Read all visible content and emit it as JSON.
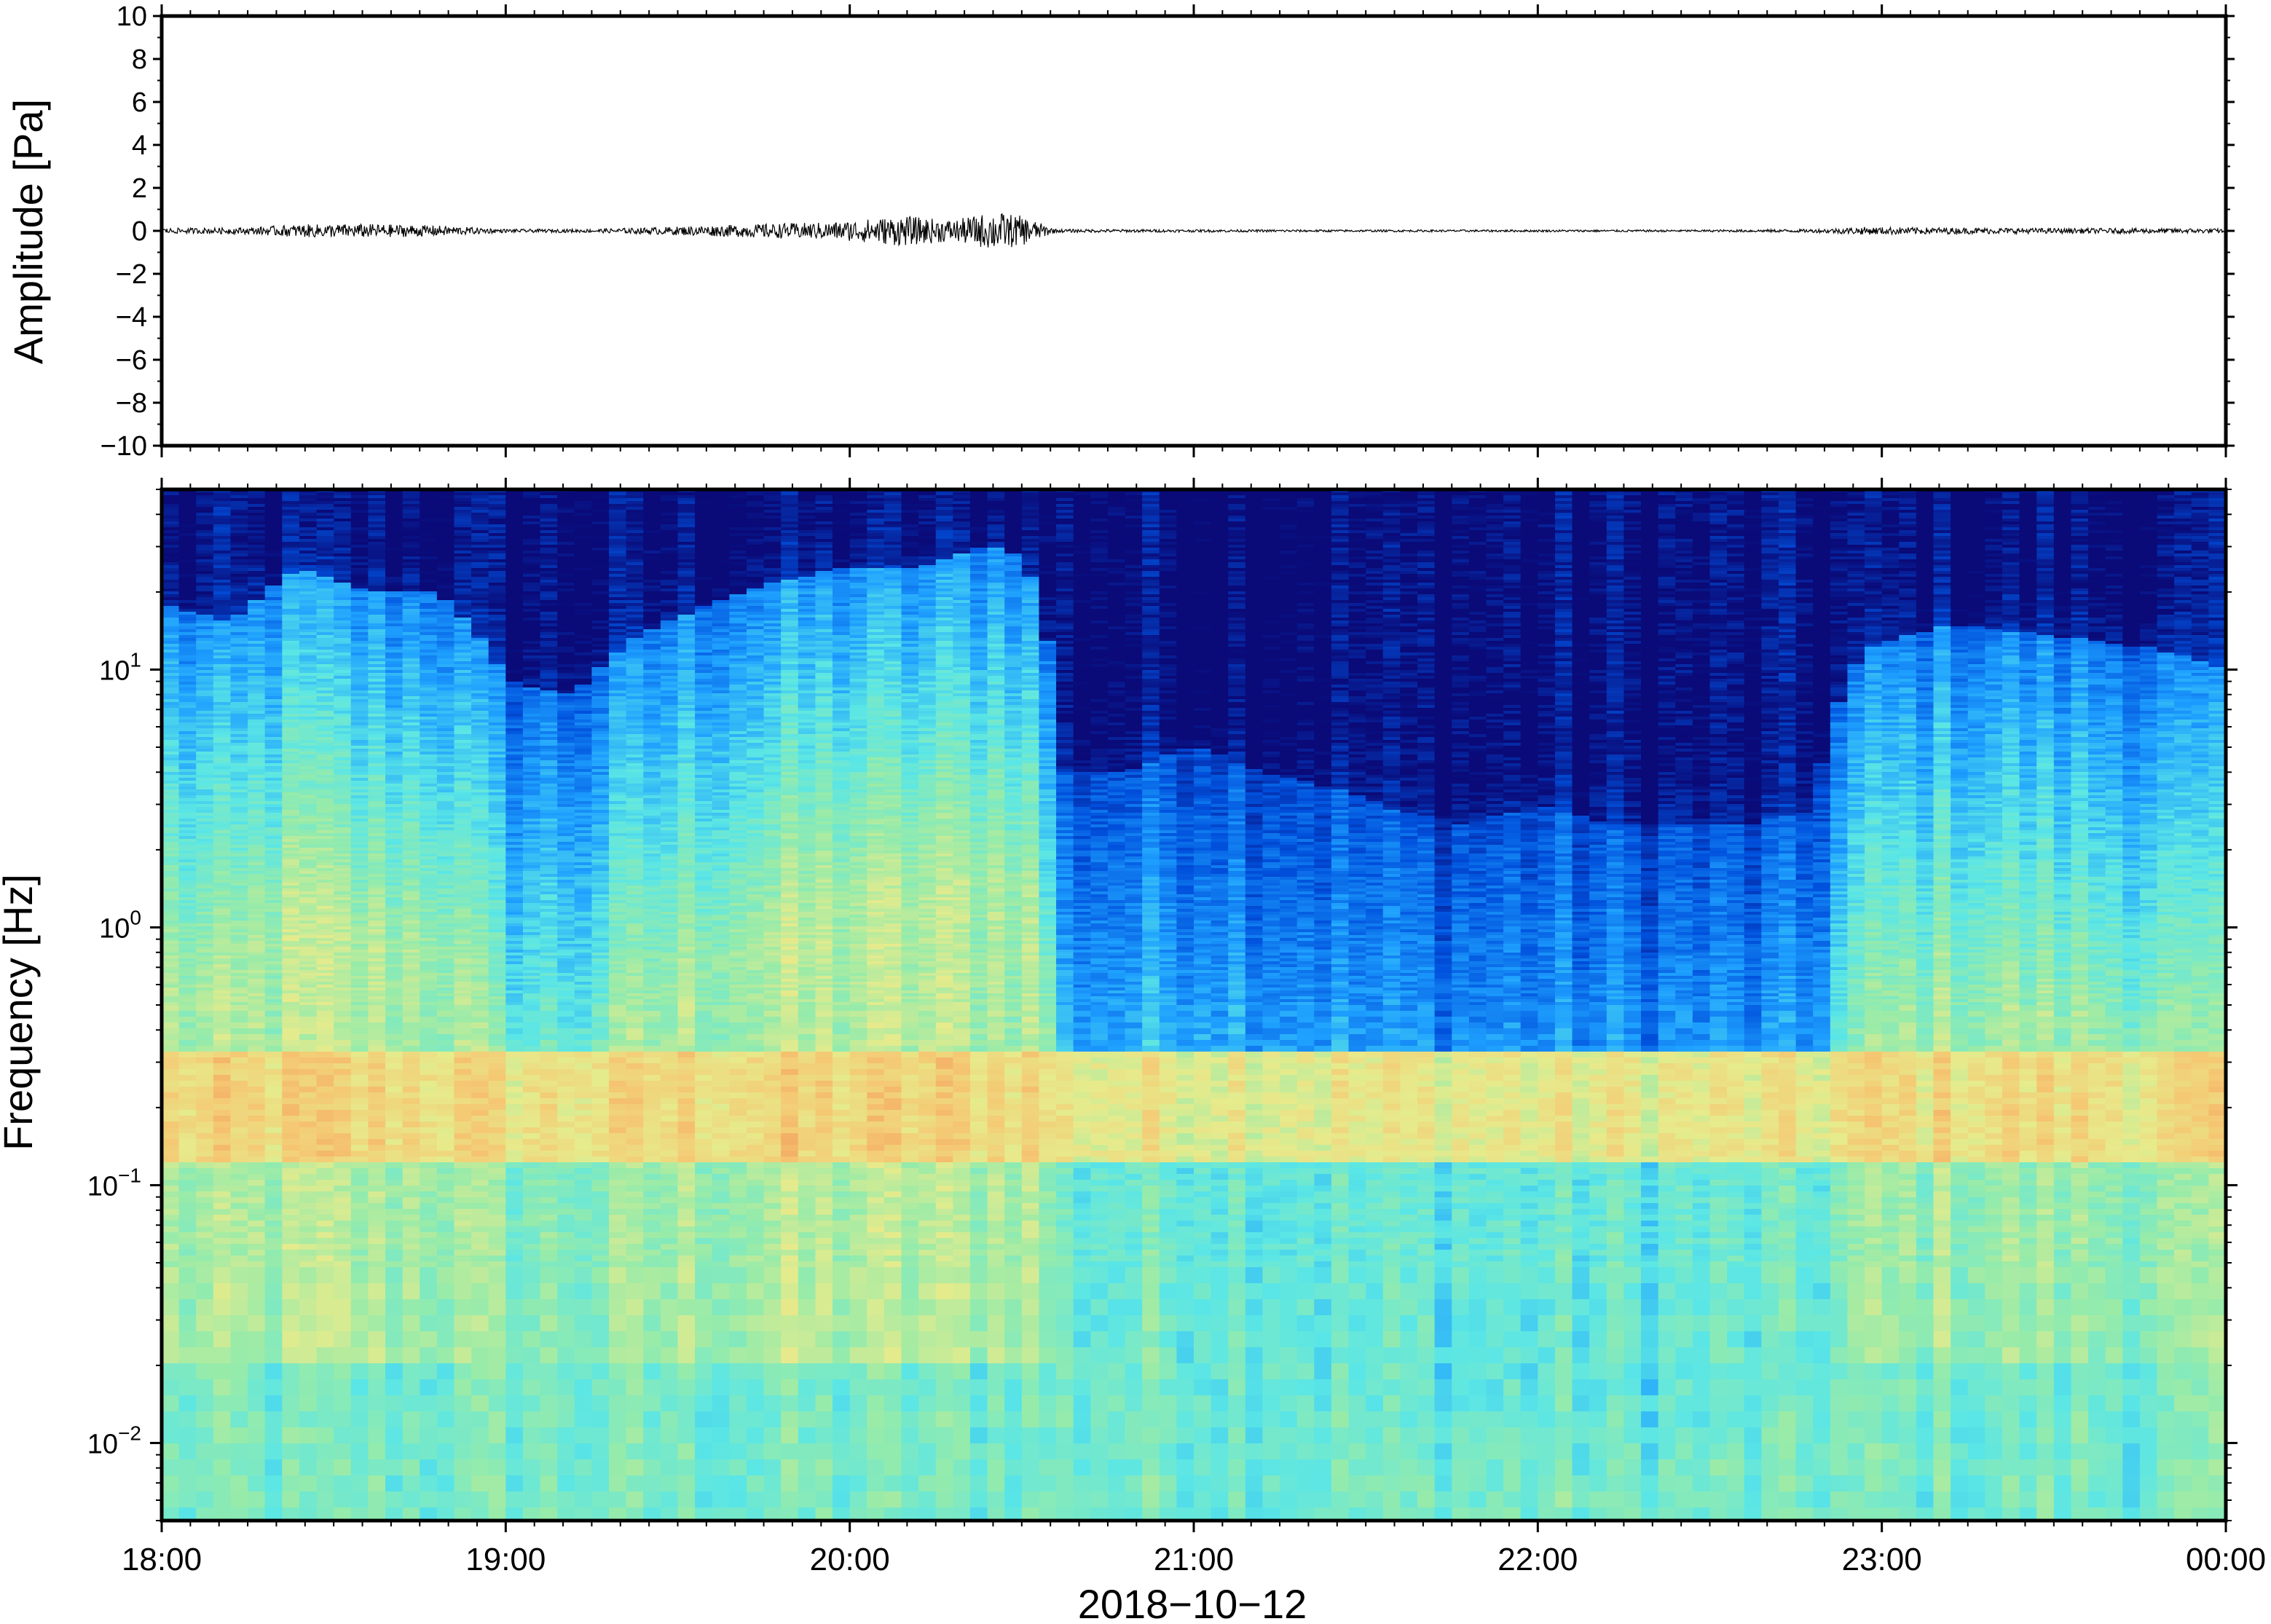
{
  "colors": {
    "waveform": "#000000",
    "frame": "#000000",
    "colormap": [
      "#0a0a78",
      "#0050dc",
      "#1ea0ff",
      "#5ae6e6",
      "#96ebaa",
      "#e6eb8c",
      "#f5c873",
      "#f08250"
    ]
  },
  "chart_data": [
    {
      "type": "line",
      "title": "",
      "xlabel": "2018−10−12",
      "ylabel": "Amplitude [Pa]",
      "ylim": [
        -10,
        10
      ],
      "yticks": [
        10,
        8,
        6,
        4,
        2,
        0,
        -2,
        -4,
        -6,
        -8,
        -10
      ],
      "ytick_labels": [
        "10",
        "8",
        "6",
        "4",
        "2",
        "0",
        "−2",
        "−4",
        "−6",
        "−8",
        "−10"
      ],
      "x_range_hours": [
        18,
        24
      ],
      "grid": false,
      "series": [
        {
          "values_note_free": true,
          "envelope": {
            "x": [
              18.0,
              18.25,
              18.4,
              18.6,
              18.8,
              19.0,
              19.25,
              19.4,
              19.6,
              19.8,
              19.95,
              20.15,
              20.3,
              20.42,
              20.5,
              20.6,
              21.0,
              21.5,
              22.0,
              22.5,
              22.8,
              22.95,
              23.2,
              23.5,
              23.8,
              24.0
            ],
            "amplitude": [
              0.12,
              0.15,
              0.3,
              0.32,
              0.25,
              0.08,
              0.08,
              0.15,
              0.25,
              0.35,
              0.4,
              0.7,
              0.5,
              0.9,
              0.7,
              0.08,
              0.06,
              0.05,
              0.05,
              0.05,
              0.08,
              0.18,
              0.15,
              0.12,
              0.12,
              0.1
            ]
          }
        }
      ]
    },
    {
      "type": "heatmap",
      "title": "",
      "xlabel": "2018−10−12",
      "ylabel": "Frequency [Hz]",
      "yscale": "log",
      "ylim": [
        0.005,
        50
      ],
      "yticks": [
        {
          "base": "10",
          "exp": "1",
          "value": 10
        },
        {
          "base": "10",
          "exp": "0",
          "value": 1
        },
        {
          "base": "10",
          "exp": "−1",
          "value": 0.1
        },
        {
          "base": "10",
          "exp": "−2",
          "value": 0.01
        }
      ],
      "xticks": [
        "18:00",
        "19:00",
        "20:00",
        "21:00",
        "22:00",
        "23:00",
        "00:00"
      ],
      "x_range_hours": [
        18,
        24
      ],
      "grid": false,
      "upper_cutoff_hz": {
        "x": [
          18.0,
          18.2,
          18.4,
          18.6,
          18.8,
          19.0,
          19.2,
          19.4,
          19.6,
          19.8,
          20.0,
          20.2,
          20.4,
          20.5,
          20.62,
          20.8,
          21.0,
          21.2,
          21.4,
          21.6,
          21.8,
          22.0,
          22.2,
          22.4,
          22.6,
          22.8,
          22.95,
          23.2,
          23.4,
          23.6,
          23.8,
          24.0
        ],
        "hz": [
          18,
          15,
          25,
          20,
          20,
          9,
          8,
          14,
          18,
          22,
          25,
          25,
          30,
          28,
          4,
          4,
          5,
          4,
          3.5,
          2.8,
          2.5,
          3,
          2.5,
          2.5,
          2.5,
          2.8,
          12,
          15,
          14,
          13,
          12,
          10
        ]
      },
      "microbarom_band_hz": [
        0.15,
        0.3
      ]
    }
  ]
}
